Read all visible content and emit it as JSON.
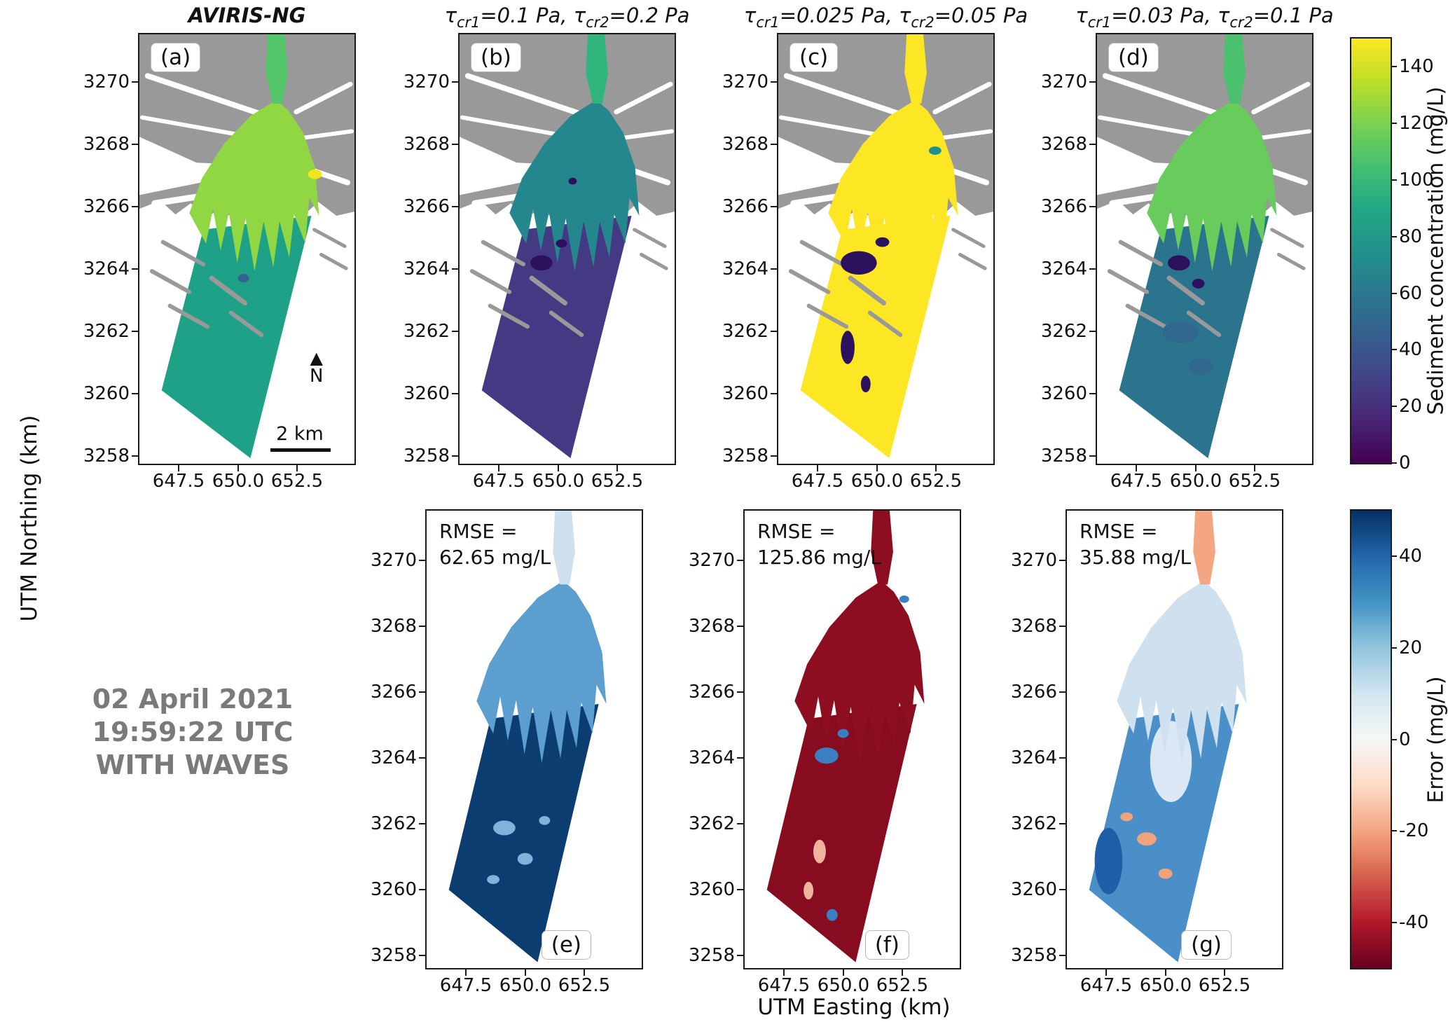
{
  "figure": {
    "xlabel": "UTM Easting (km)",
    "ylabel": "UTM Northing (km)",
    "x_ticks": [
      "647.5",
      "650.0",
      "652.5"
    ],
    "y_ticks": [
      "3270",
      "3268",
      "3266",
      "3264",
      "3262",
      "3260",
      "3258"
    ]
  },
  "annotation": {
    "lines": [
      "02 April 2021",
      "19:59:22 UTC",
      "WITH WAVES"
    ],
    "color": "#7a7a7a"
  },
  "map_legend": {
    "north_symbol": "▲",
    "north_label": "N",
    "scalebar_label": "2 km"
  },
  "colorbars": [
    {
      "id": "sediment",
      "label": "Sediment concentration (mg/L)",
      "ticks": [
        "0",
        "20",
        "40",
        "60",
        "80",
        "100",
        "120",
        "140"
      ],
      "range": [
        0,
        150
      ],
      "colormap": "viridis",
      "stops": [
        "#440154",
        "#482475",
        "#414487",
        "#355f8d",
        "#2a788e",
        "#21918c",
        "#22a884",
        "#44bf70",
        "#7ad151",
        "#bddf26",
        "#fde725"
      ]
    },
    {
      "id": "error",
      "label": "Error (mg/L)",
      "ticks": [
        "-40",
        "-20",
        "0",
        "20",
        "40"
      ],
      "range": [
        -50,
        50
      ],
      "colormap": "RdBu",
      "stops": [
        "#67001f",
        "#b2182b",
        "#d6604d",
        "#f4a582",
        "#fddbc7",
        "#f7f7f7",
        "#d1e5f0",
        "#92c5de",
        "#4393c3",
        "#2166ac",
        "#053061"
      ]
    }
  ],
  "panels": [
    {
      "id": "a",
      "row": "top",
      "corner_label": "(a)",
      "title_segments": [
        [
          "AVIRIS-NG",
          "b"
        ]
      ],
      "layers": {
        "land": "#999999",
        "trunk": "#54c568",
        "fan": "#90d743",
        "swath": "#1fa188",
        "blob": "#33638d",
        "accent": "#f1e51f"
      }
    },
    {
      "id": "b",
      "row": "top",
      "corner_label": "(b)",
      "title_segments": [
        [
          "τ",
          "n"
        ],
        [
          "cr1",
          "s"
        ],
        [
          "=0.1 Pa, ",
          "n"
        ],
        [
          "τ",
          "n"
        ],
        [
          "cr2",
          "s"
        ],
        [
          "=0.2 Pa",
          "n"
        ]
      ],
      "layers": {
        "land": "#999999",
        "trunk": "#2fb47c",
        "fan": "#24878e",
        "swath": "#443a83",
        "blob": "#2c115f",
        "accent": "#355f8d"
      }
    },
    {
      "id": "c",
      "row": "top",
      "corner_label": "(c)",
      "title_segments": [
        [
          "τ",
          "n"
        ],
        [
          "cr1",
          "s"
        ],
        [
          "=0.025 Pa, ",
          "n"
        ],
        [
          "τ",
          "n"
        ],
        [
          "cr2",
          "s"
        ],
        [
          "=0.05 Pa",
          "n"
        ]
      ],
      "layers": {
        "land": "#999999",
        "trunk": "#fde725",
        "fan": "#fde725",
        "swath": "#fde725",
        "blob": "#2c115f",
        "accent": "#21918c"
      }
    },
    {
      "id": "d",
      "row": "top",
      "corner_label": "(d)",
      "title_segments": [
        [
          "τ",
          "n"
        ],
        [
          "cr1",
          "s"
        ],
        [
          "=0.03 Pa, ",
          "n"
        ],
        [
          "τ",
          "n"
        ],
        [
          "cr2",
          "s"
        ],
        [
          "=0.1 Pa",
          "n"
        ]
      ],
      "layers": {
        "land": "#999999",
        "trunk": "#49c16d",
        "fan": "#67cc5c",
        "swath": "#2b748e",
        "blob": "#31688e",
        "accent": "#2c115f"
      }
    },
    {
      "id": "e",
      "row": "bottom",
      "corner_label": "(e)",
      "rmse_lines": [
        "RMSE =",
        "62.65 mg/L"
      ],
      "layers": {
        "trunk": "#cfe0ee",
        "fan": "#5b9ecf",
        "swath": "#0b3d70",
        "blob": "#7fb3dc",
        "accent": "#2e72b5"
      }
    },
    {
      "id": "f",
      "row": "bottom",
      "corner_label": "(f)",
      "rmse_lines": [
        "RMSE =",
        "125.86 mg/L"
      ],
      "layers": {
        "trunk": "#8d0d21",
        "fan": "#8d0d21",
        "swath": "#880c20",
        "blob": "#3a7fc1",
        "accent": "#eeb49c"
      }
    },
    {
      "id": "g",
      "row": "bottom",
      "corner_label": "(g)",
      "rmse_lines": [
        "RMSE =",
        "35.88 mg/L"
      ],
      "layers": {
        "trunk": "#f4a582",
        "fan": "#cfe1ef",
        "swath": "#4a8fc7",
        "blob": "#f2a27d",
        "accent": "#1f5fa8",
        "pale": "#e9f2f8"
      }
    }
  ],
  "chart_data": {
    "type": "heatmap",
    "title": "Sediment concentration maps (AVIRIS-NG vs. model runs) and model error maps over a river delta",
    "xlabel": "UTM Easting (km)",
    "ylabel": "UTM Northing (km)",
    "x_ticks": [
      647.5,
      650.0,
      652.5
    ],
    "y_ticks": [
      3270,
      3268,
      3266,
      3264,
      3262,
      3260,
      3258
    ],
    "annotation": "02 April 2021 19:59:22 UTC WITH WAVES",
    "colorbars": [
      {
        "label": "Sediment concentration (mg/L)",
        "min": 0,
        "max": 150,
        "ticks": [
          0,
          20,
          40,
          60,
          80,
          100,
          120,
          140
        ],
        "colormap": "viridis"
      },
      {
        "label": "Error (mg/L)",
        "min": -50,
        "max": 50,
        "ticks": [
          -40,
          -20,
          0,
          20,
          40
        ],
        "colormap": "RdBu"
      }
    ],
    "panels": [
      {
        "id": "a",
        "title": "AVIRIS-NG",
        "quantity": "sediment concentration (mg/L)",
        "scalebar_km": 2
      },
      {
        "id": "b",
        "tau_cr1_Pa": 0.1,
        "tau_cr2_Pa": 0.2,
        "quantity": "sediment concentration (mg/L)"
      },
      {
        "id": "c",
        "tau_cr1_Pa": 0.025,
        "tau_cr2_Pa": 0.05,
        "quantity": "sediment concentration (mg/L)"
      },
      {
        "id": "d",
        "tau_cr1_Pa": 0.03,
        "tau_cr2_Pa": 0.1,
        "quantity": "sediment concentration (mg/L)"
      },
      {
        "id": "e",
        "rmse_mg_per_L": 62.65,
        "quantity": "error (mg/L)"
      },
      {
        "id": "f",
        "rmse_mg_per_L": 125.86,
        "quantity": "error (mg/L)"
      },
      {
        "id": "g",
        "rmse_mg_per_L": 35.88,
        "quantity": "error (mg/L)"
      }
    ]
  }
}
